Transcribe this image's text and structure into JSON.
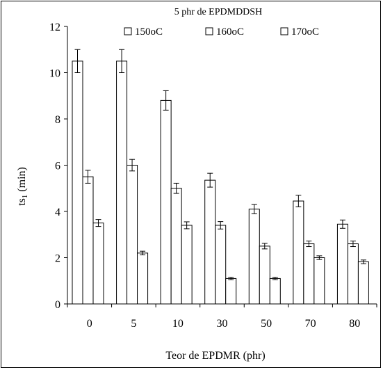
{
  "chart_data": {
    "type": "bar",
    "title": "5 phr de EPDMDDSH",
    "xlabel": "Teor de EPDMR (phr)",
    "ylabel_main": "ts",
    "ylabel_sub": "1",
    "ylabel_unit": " (min)",
    "categories": [
      "0",
      "5",
      "10",
      "30",
      "50",
      "70",
      "80"
    ],
    "ylim": [
      0,
      12
    ],
    "yticks": [
      0,
      2,
      4,
      6,
      8,
      10,
      12
    ],
    "legend_position": "top",
    "series": [
      {
        "name": "150oC",
        "values": [
          10.5,
          10.5,
          8.8,
          5.35,
          4.1,
          4.45,
          3.45
        ],
        "errors": [
          0.5,
          0.5,
          0.42,
          0.3,
          0.2,
          0.25,
          0.18
        ]
      },
      {
        "name": "160oC",
        "values": [
          5.5,
          6.0,
          5.0,
          3.4,
          2.5,
          2.6,
          2.6
        ],
        "errors": [
          0.28,
          0.25,
          0.22,
          0.16,
          0.12,
          0.12,
          0.12
        ]
      },
      {
        "name": "170oC",
        "values": [
          3.5,
          2.2,
          3.4,
          1.1,
          1.1,
          2.0,
          1.82
        ],
        "errors": [
          0.15,
          0.08,
          0.15,
          0.05,
          0.05,
          0.08,
          0.08
        ]
      }
    ]
  }
}
